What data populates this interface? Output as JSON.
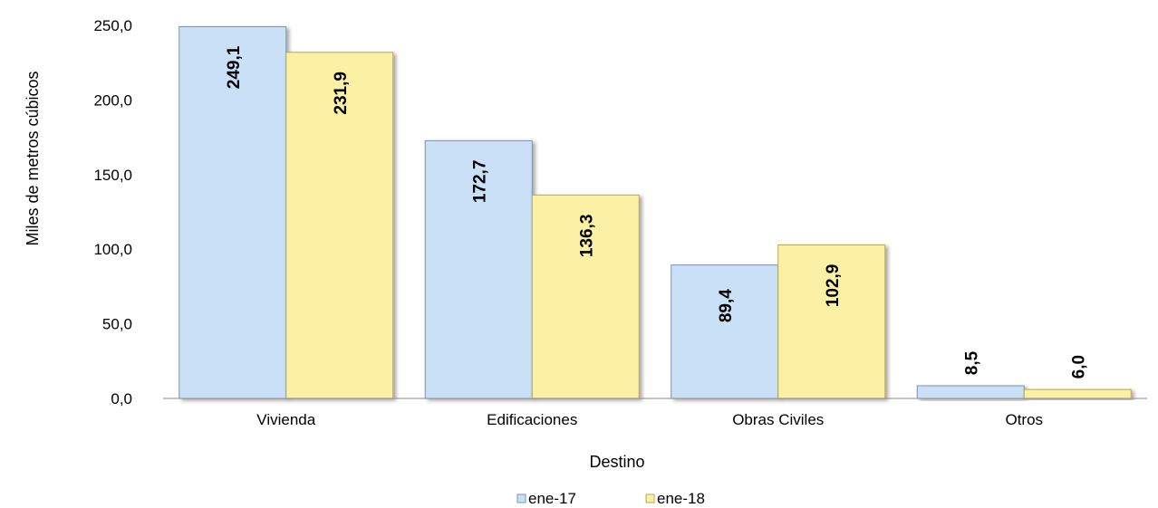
{
  "chart_data": {
    "type": "bar",
    "categories": [
      "Vivienda",
      "Edificaciones",
      "Obras Civiles",
      "Otros"
    ],
    "series": [
      {
        "name": "ene-17",
        "values": [
          249.1,
          172.7,
          89.4,
          8.5
        ],
        "labels": [
          "249,1",
          "172,7",
          "89,4",
          "8,5"
        ],
        "color": "#c9e0f7"
      },
      {
        "name": "ene-18",
        "values": [
          231.9,
          136.3,
          102.9,
          6.0
        ],
        "labels": [
          "231,9",
          "136,3",
          "102,9",
          "6,0"
        ],
        "color": "#fbf0a4"
      }
    ],
    "xlabel": "Destino",
    "ylabel": "Miles de metros cúbicos",
    "ylim": [
      0,
      250
    ],
    "yticks": [
      0,
      50,
      100,
      150,
      200,
      250
    ],
    "ytick_labels": [
      "0,0",
      "50,0",
      "100,0",
      "150,0",
      "200,0",
      "250,0"
    ],
    "legend_position": "bottom",
    "grid": false
  }
}
